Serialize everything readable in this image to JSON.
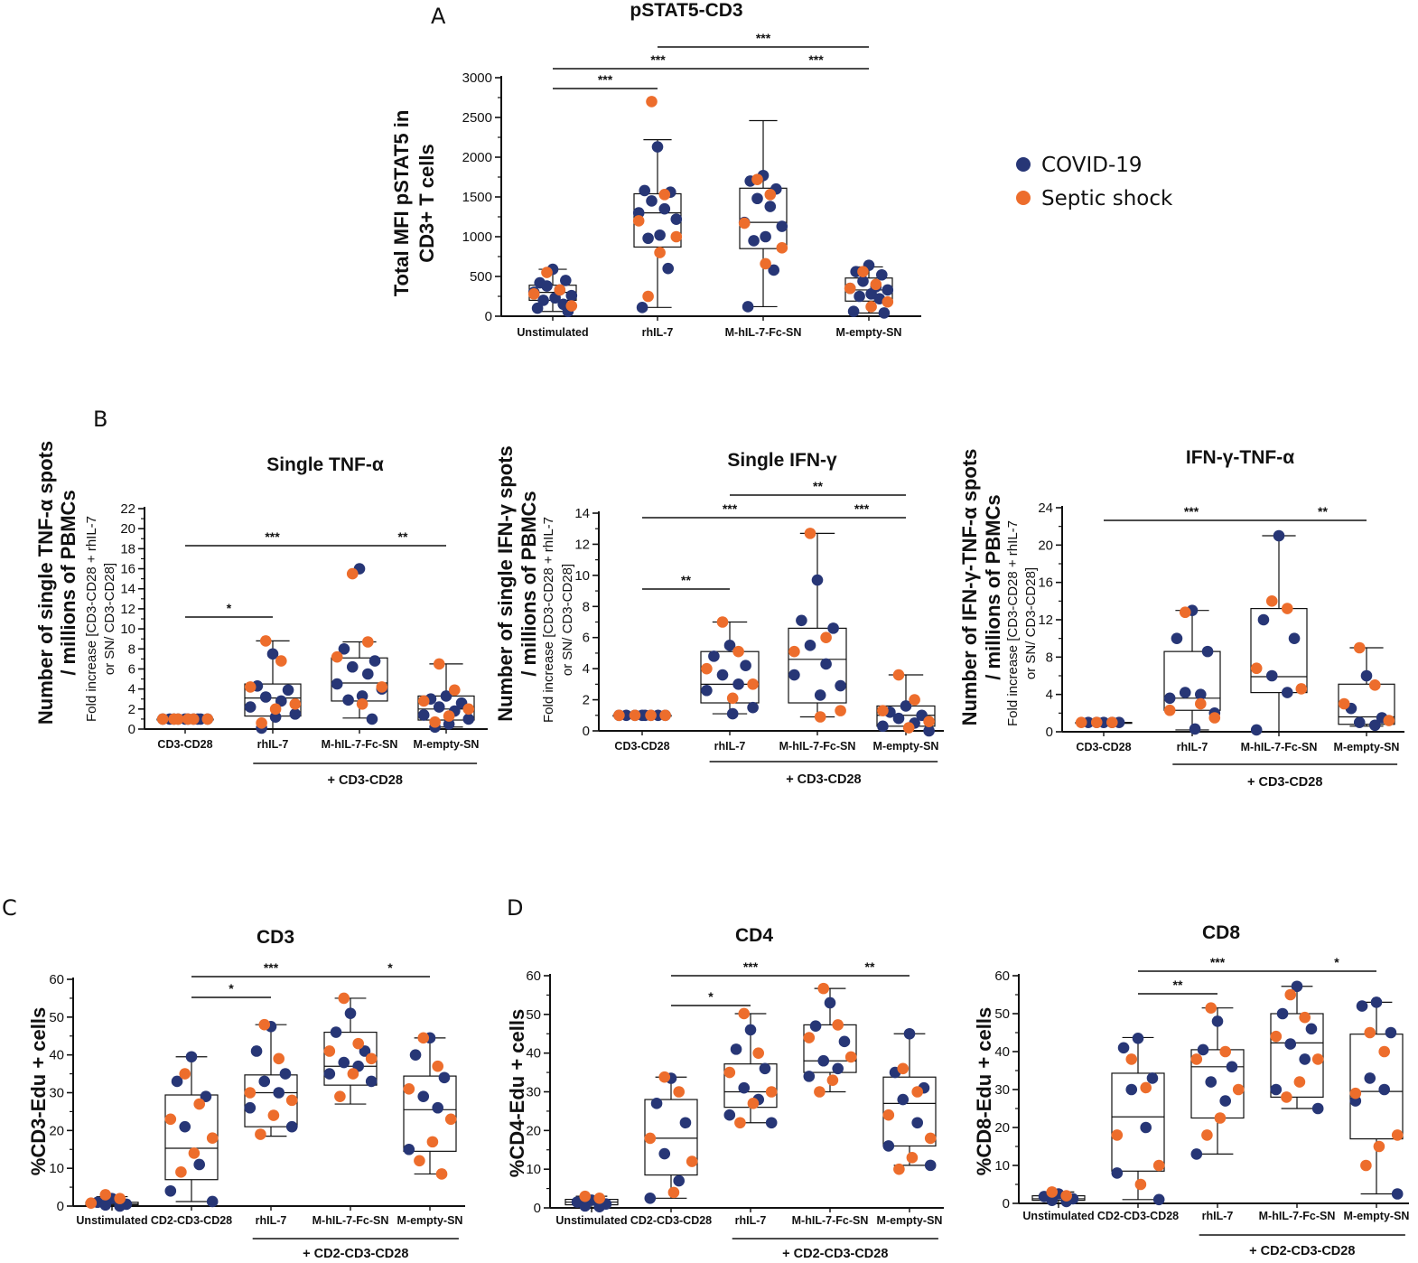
{
  "colors": {
    "covid": "#273676",
    "septic": "#ed6d2c",
    "axis": "#111111"
  },
  "legend": {
    "items": [
      "COVID-19",
      "Septic shock"
    ],
    "placement": "top-right"
  },
  "panel_letters": [
    "A",
    "B",
    "C",
    "D"
  ],
  "chart_data": [
    {
      "id": "A",
      "type": "box-dot",
      "title": "pSTAT5-CD3",
      "ylabel": [
        "Total MFI pSTAT5 in",
        "CD3+ T cells"
      ],
      "ylim": [
        0,
        3000
      ],
      "yticks": [
        0,
        500,
        1000,
        1500,
        2000,
        2500,
        3000
      ],
      "categories": [
        "Unstimulated",
        "rhIL-7",
        "M-hIL-7-Fc-SN",
        "M-empty-SN"
      ],
      "boxes": [
        {
          "min": 60,
          "q1": 200,
          "median": 300,
          "q3": 390,
          "max": 590
        },
        {
          "min": 110,
          "q1": 870,
          "median": 1300,
          "q3": 1540,
          "max": 2220
        },
        {
          "min": 120,
          "q1": 850,
          "median": 1180,
          "q3": 1610,
          "max": 2460
        },
        {
          "min": 40,
          "q1": 190,
          "median": 330,
          "q3": 480,
          "max": 620
        }
      ],
      "covid": [
        [
          590,
          420,
          450,
          380,
          330,
          300,
          260,
          230,
          200,
          150,
          100,
          60
        ],
        [
          2130,
          1580,
          1560,
          1450,
          1350,
          1300,
          1220,
          1020,
          980,
          600,
          110
        ],
        [
          1770,
          1700,
          1600,
          1480,
          1380,
          1180,
          1130,
          1000,
          950,
          580,
          120
        ],
        [
          640,
          560,
          520,
          440,
          370,
          350,
          330,
          280,
          250,
          220,
          60,
          40
        ]
      ],
      "septic": [
        [
          550,
          330,
          280,
          130
        ],
        [
          2700,
          1530,
          1200,
          1000,
          800,
          250
        ],
        [
          1720,
          1530,
          1170,
          860,
          660
        ],
        [
          560,
          400,
          350,
          180,
          120
        ]
      ],
      "significance": [
        {
          "from": 0,
          "to": 1,
          "label": "***"
        },
        {
          "from": 0,
          "to": 2,
          "label": "***"
        },
        {
          "from": 2,
          "to": 3,
          "label": "***"
        },
        {
          "from": 1,
          "to": 3,
          "label": "***"
        }
      ]
    },
    {
      "id": "B1",
      "type": "box-dot",
      "title": "Single TNF-α",
      "ylabel": [
        "Number of single TNF-α spots",
        "/ millions of PBMCs"
      ],
      "ylabel2": [
        "Fold increase [CD3-CD28 + rhIL-7",
        "or SN/ CD3-CD28]"
      ],
      "ylim": [
        0,
        22
      ],
      "yticks": [
        0,
        2,
        4,
        6,
        8,
        10,
        12,
        14,
        16,
        18,
        20,
        22
      ],
      "categories": [
        "CD3-CD28",
        "rhIL-7",
        "M-hIL-7-Fc-SN",
        "M-empty-SN"
      ],
      "group_label": "+ CD3-CD28",
      "group_span": [
        1,
        3
      ],
      "boxes": [
        {
          "min": 1,
          "q1": 1,
          "median": 1,
          "q3": 1,
          "max": 1
        },
        {
          "min": 0,
          "q1": 1.3,
          "median": 3.1,
          "q3": 4.5,
          "max": 8.8
        },
        {
          "min": 1.1,
          "q1": 2.8,
          "median": 4.6,
          "q3": 7.1,
          "max": 8.7
        },
        {
          "min": 0.2,
          "q1": 0.9,
          "median": 2.0,
          "q3": 3.3,
          "max": 6.5
        }
      ],
      "covid": [
        [
          1,
          1,
          1,
          1,
          1,
          1,
          1,
          1,
          1,
          1
        ],
        [
          7.5,
          4.3,
          3.9,
          3.2,
          2.8,
          2.2,
          1.5,
          1.2,
          0.1
        ],
        [
          16.0,
          8.0,
          6.8,
          6.2,
          5.5,
          4.5,
          4.0,
          3.3,
          2.9,
          1.0
        ],
        [
          3.3,
          3.0,
          2.6,
          2.2,
          1.8,
          1.4,
          1.0,
          0.5,
          0.2
        ]
      ],
      "septic": [
        [
          1,
          1,
          1,
          1,
          1,
          1
        ],
        [
          8.8,
          6.8,
          4.2,
          2.5,
          2.0,
          0.6
        ],
        [
          15.5,
          8.7,
          7.2,
          4.2,
          2.5
        ],
        [
          6.5,
          3.9,
          2.8,
          2.0,
          1.3,
          0.7
        ]
      ],
      "significance": [
        {
          "from": 0,
          "to": 1,
          "label": "*"
        },
        {
          "from": 0,
          "to": 2,
          "label": "***"
        },
        {
          "from": 2,
          "to": 3,
          "label": "**"
        }
      ]
    },
    {
      "id": "B2",
      "type": "box-dot",
      "title": "Single IFN-γ",
      "ylabel": [
        "Number of single IFN-γ spots",
        "/ millions of PBMCs"
      ],
      "ylabel2": [
        "Fold increase [CD3-CD28 + rhIL-7",
        "or SN/ CD3-CD28]"
      ],
      "ylim": [
        0,
        14
      ],
      "yticks": [
        0,
        2,
        4,
        6,
        8,
        10,
        12,
        14
      ],
      "categories": [
        "CD3-CD28",
        "rhIL-7",
        "M-hIL-7-Fc-SN",
        "M-empty-SN"
      ],
      "group_label": "+ CD3-CD28",
      "group_span": [
        1,
        3
      ],
      "boxes": [
        {
          "min": 1,
          "q1": 1,
          "median": 1,
          "q3": 1,
          "max": 1
        },
        {
          "min": 1.1,
          "q1": 1.8,
          "median": 3.0,
          "q3": 5.1,
          "max": 7.0
        },
        {
          "min": 0.9,
          "q1": 1.8,
          "median": 4.6,
          "q3": 6.6,
          "max": 12.7
        },
        {
          "min": 0.0,
          "q1": 0.3,
          "median": 1.0,
          "q3": 1.6,
          "max": 3.6
        }
      ],
      "covid": [
        [
          1,
          1,
          1,
          1,
          1,
          1,
          1,
          1
        ],
        [
          5.5,
          4.8,
          4.2,
          3.6,
          3.0,
          2.6,
          1.5,
          1.1
        ],
        [
          9.7,
          7.1,
          6.6,
          5.5,
          4.3,
          3.6,
          2.9,
          2.3
        ],
        [
          1.6,
          1.2,
          1.0,
          0.8,
          0.5,
          0.3,
          0.0
        ]
      ],
      "septic": [
        [
          1,
          1,
          1,
          1
        ],
        [
          7.0,
          5.1,
          4.0,
          3.0,
          2.1
        ],
        [
          12.7,
          6.0,
          5.1,
          1.3,
          0.9
        ],
        [
          3.6,
          2.0,
          1.3,
          0.6,
          0.2
        ]
      ],
      "significance": [
        {
          "from": 0,
          "to": 1,
          "label": "**"
        },
        {
          "from": 0,
          "to": 2,
          "label": "***"
        },
        {
          "from": 2,
          "to": 3,
          "label": "***"
        },
        {
          "from": 1,
          "to": 3,
          "label": "**"
        }
      ]
    },
    {
      "id": "B3",
      "type": "box-dot",
      "title": "IFN-γ-TNF-α",
      "ylabel": [
        "Number of IFN-γ-TNF-α spots",
        "/ millions of PBMCs"
      ],
      "ylabel2": [
        "Fold increase [CD3-CD28 + rhIL-7",
        "or SN/ CD3-CD28]"
      ],
      "ylim": [
        0,
        24
      ],
      "yticks": [
        0,
        4,
        8,
        12,
        16,
        20,
        24
      ],
      "categories": [
        "CD3-CD28",
        "rhIL-7",
        "M-hIL-7-Fc-SN",
        "M-empty-SN"
      ],
      "group_label": "+ CD3-CD28",
      "group_span": [
        1,
        3
      ],
      "boxes": [
        {
          "min": 1,
          "q1": 1,
          "median": 1,
          "q3": 1,
          "max": 1
        },
        {
          "min": 0.2,
          "q1": 2.3,
          "median": 3.6,
          "q3": 8.6,
          "max": 13.0
        },
        {
          "min": 0,
          "q1": 4.2,
          "median": 5.9,
          "q3": 13.2,
          "max": 21.0
        },
        {
          "min": 0.6,
          "q1": 0.8,
          "median": 1.6,
          "q3": 5.1,
          "max": 9.0
        }
      ],
      "covid": [
        [
          1,
          1,
          1,
          1,
          1
        ],
        [
          13.0,
          10.0,
          8.6,
          4.2,
          4.0,
          3.6,
          2.0,
          0.3
        ],
        [
          21.0,
          12.0,
          10.0,
          6.0,
          4.2,
          0.2
        ],
        [
          6.0,
          2.5,
          1.5,
          1.0,
          0.7
        ]
      ],
      "septic": [
        [
          1,
          1,
          1
        ],
        [
          12.8,
          3.0,
          2.3,
          1.5
        ],
        [
          14.0,
          13.2,
          6.8,
          4.6
        ],
        [
          9.0,
          5.0,
          3.0,
          1.2
        ]
      ],
      "significance": [
        {
          "from": 0,
          "to": 2,
          "label": "***"
        },
        {
          "from": 2,
          "to": 3,
          "label": "**"
        }
      ]
    },
    {
      "id": "C",
      "type": "box-dot",
      "title": "CD3",
      "ylabel": [
        "%CD3-Edu + cells"
      ],
      "ylim": [
        0,
        60
      ],
      "yticks": [
        0,
        10,
        20,
        30,
        40,
        50,
        60
      ],
      "categories": [
        "Unstimulated",
        "CD2-CD3-CD28",
        "rhIL-7",
        "M-hIL-7-Fc-SN",
        "M-empty-SN"
      ],
      "group_label": "+ CD2-CD3-CD28",
      "group_span": [
        2,
        4
      ],
      "boxes": [
        {
          "min": 0,
          "q1": 0.2,
          "median": 0.5,
          "q3": 1.0,
          "max": 2.5
        },
        {
          "min": 1.2,
          "q1": 7.0,
          "median": 15.3,
          "q3": 29.4,
          "max": 39.5
        },
        {
          "min": 18.5,
          "q1": 21.0,
          "median": 30.0,
          "q3": 34.7,
          "max": 48.0
        },
        {
          "min": 27.0,
          "q1": 32.0,
          "median": 37.0,
          "q3": 46.0,
          "max": 55.0
        },
        {
          "min": 8.5,
          "q1": 14.5,
          "median": 25.5,
          "q3": 34.4,
          "max": 44.5
        }
      ],
      "covid": [
        [
          2.0,
          1.0,
          0.5,
          0.3,
          0.0
        ],
        [
          39.5,
          33.0,
          29.0,
          21.0,
          11.0,
          4.0,
          1.2
        ],
        [
          47.5,
          41.0,
          35.0,
          33.0,
          30.0,
          26.0,
          21.0
        ],
        [
          51.0,
          46.0,
          41.0,
          38.0,
          37.0,
          35.0,
          33.0
        ],
        [
          44.5,
          40.0,
          34.0,
          29.0,
          26.0,
          15.0
        ]
      ],
      "septic": [
        [
          3.0,
          2.0,
          0.8
        ],
        [
          35.0,
          27.0,
          23.0,
          18.0,
          14.0,
          9.0
        ],
        [
          48.0,
          39.0,
          30.0,
          28.0,
          24.0,
          19.0
        ],
        [
          55.0,
          43.0,
          41.0,
          39.0,
          35.0,
          29.0
        ],
        [
          44.5,
          37.0,
          31.0,
          23.0,
          17.0,
          12.0,
          8.5
        ]
      ],
      "significance": [
        {
          "from": 1,
          "to": 2,
          "label": "*"
        },
        {
          "from": 1,
          "to": 3,
          "label": "***"
        },
        {
          "from": 3,
          "to": 4,
          "label": "*"
        }
      ]
    },
    {
      "id": "D1",
      "type": "box-dot",
      "title": "CD4",
      "ylabel": [
        "%CD4-Edu + cells"
      ],
      "ylim": [
        0,
        60
      ],
      "yticks": [
        0,
        10,
        20,
        30,
        40,
        50,
        60
      ],
      "categories": [
        "Unstimulated",
        "CD2-CD3-CD28",
        "rhIL-7",
        "M-hIL-7-Fc-SN",
        "M-empty-SN"
      ],
      "group_label": "+ CD2-CD3-CD28",
      "group_span": [
        2,
        4
      ],
      "boxes": [
        {
          "min": 0,
          "q1": 0.8,
          "median": 1.5,
          "q3": 2.2,
          "max": 3.0
        },
        {
          "min": 2.5,
          "q1": 8.5,
          "median": 18.0,
          "q3": 28.0,
          "max": 33.8
        },
        {
          "min": 22.0,
          "q1": 26.0,
          "median": 30.0,
          "q3": 37.2,
          "max": 50.2
        },
        {
          "min": 30.0,
          "q1": 35.0,
          "median": 38.0,
          "q3": 47.3,
          "max": 56.7
        },
        {
          "min": 11.0,
          "q1": 16.0,
          "median": 27.0,
          "q3": 33.8,
          "max": 45.0
        }
      ],
      "covid": [
        [
          2.0,
          1.5,
          1.0,
          0.5,
          0.3
        ],
        [
          33.5,
          27.0,
          22.0,
          14.0,
          7.0,
          2.5
        ],
        [
          46.0,
          41.0,
          36.0,
          31.0,
          28.0,
          24.0,
          22.0
        ],
        [
          53.0,
          47.0,
          43.0,
          38.0,
          36.0,
          34.0
        ],
        [
          45.0,
          35.0,
          31.0,
          28.0,
          22.0,
          16.0,
          11.0
        ]
      ],
      "septic": [
        [
          3.0,
          2.5
        ],
        [
          33.8,
          30.0,
          18.0,
          12.0,
          4.0
        ],
        [
          50.2,
          40.0,
          35.0,
          30.0,
          27.0,
          22.0
        ],
        [
          56.7,
          47.3,
          44.0,
          39.0,
          33.0,
          30.0
        ],
        [
          36.0,
          30.0,
          24.0,
          18.0,
          13.0,
          10.0
        ]
      ],
      "significance": [
        {
          "from": 1,
          "to": 2,
          "label": "*"
        },
        {
          "from": 1,
          "to": 3,
          "label": "***"
        },
        {
          "from": 3,
          "to": 4,
          "label": "**"
        }
      ]
    },
    {
      "id": "D2",
      "type": "box-dot",
      "title": "CD8",
      "ylabel": [
        "%CD8-Edu + cells"
      ],
      "ylim": [
        0,
        60
      ],
      "yticks": [
        0,
        10,
        20,
        30,
        40,
        50,
        60
      ],
      "categories": [
        "Unstimulated",
        "CD2-CD3-CD28",
        "rhIL-7",
        "M-hIL-7-Fc-SN",
        "M-empty-SN"
      ],
      "group_label": "+ CD2-CD3-CD28",
      "group_span": [
        2,
        4
      ],
      "boxes": [
        {
          "min": 0,
          "q1": 0.8,
          "median": 1.2,
          "q3": 2.0,
          "max": 3.0
        },
        {
          "min": 1.0,
          "q1": 8.5,
          "median": 22.8,
          "q3": 34.3,
          "max": 43.7
        },
        {
          "min": 13.0,
          "q1": 22.5,
          "median": 36.0,
          "q3": 40.5,
          "max": 51.5
        },
        {
          "min": 25.0,
          "q1": 28.0,
          "median": 42.3,
          "q3": 50.0,
          "max": 57.2
        },
        {
          "min": 2.5,
          "q1": 17.0,
          "median": 29.5,
          "q3": 44.6,
          "max": 53.0
        }
      ],
      "covid": [
        [
          2.5,
          1.8,
          1.2,
          0.8,
          0.5
        ],
        [
          43.5,
          41.0,
          33.0,
          30.0,
          20.0,
          8.0,
          1.0
        ],
        [
          48.0,
          40.5,
          36.0,
          32.0,
          27.0,
          13.0
        ],
        [
          57.2,
          50.0,
          46.0,
          42.0,
          38.0,
          30.0,
          25.0
        ],
        [
          53.0,
          52.0,
          45.0,
          33.0,
          30.0,
          27.0,
          2.5
        ]
      ],
      "septic": [
        [
          3.0,
          2.0
        ],
        [
          38.0,
          30.5,
          18.0,
          10.0,
          5.0
        ],
        [
          51.5,
          40.0,
          38.0,
          30.0,
          22.5,
          18.0
        ],
        [
          55.0,
          49.0,
          44.0,
          38.0,
          32.0,
          28.0
        ],
        [
          45.0,
          40.0,
          29.0,
          18.0,
          15.0,
          10.0
        ]
      ],
      "significance": [
        {
          "from": 1,
          "to": 2,
          "label": "**"
        },
        {
          "from": 1,
          "to": 3,
          "label": "***"
        },
        {
          "from": 3,
          "to": 4,
          "label": "*"
        }
      ]
    }
  ]
}
